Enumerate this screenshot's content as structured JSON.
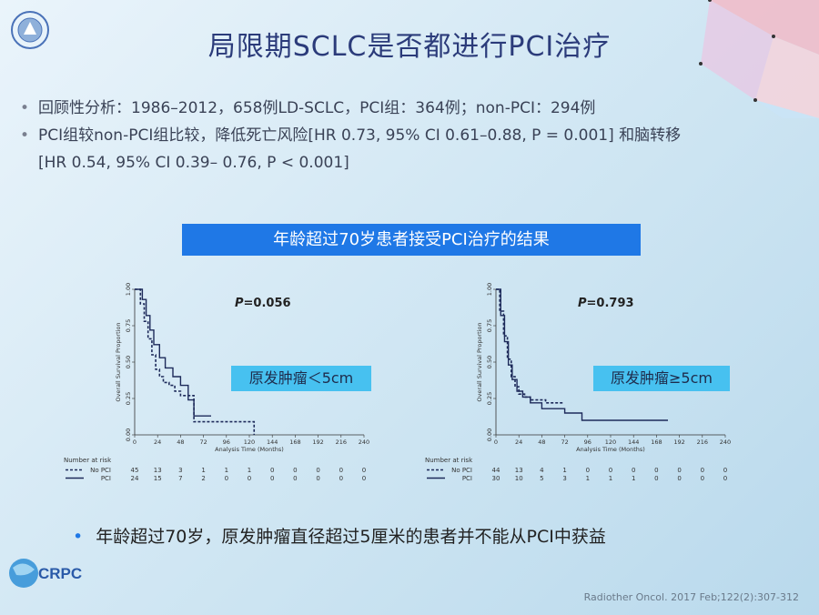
{
  "slide": {
    "title": "局限期SCLC是否都进行PCI治疗",
    "bullets": [
      {
        "text": "回顾性分析：1986–2012，658例LD-SCLC，PCI组：364例；non-PCI：294例"
      },
      {
        "line1": "PCI组较non-PCI组比较，降低死亡风险[HR 0.73, 95% CI 0.61–0.88, P = 0.001] 和脑转移",
        "line2": "[HR 0.54, 95% CI 0.39– 0.76, P < 0.001]"
      }
    ],
    "banner": "年龄超过70岁患者接受PCI治疗的结果",
    "conclusion": "年龄超过70岁，原发肿瘤直径超过5厘米的患者并不能从PCI中获益",
    "reference": "Radiother Oncol. 2017 Feb;122(2):307-312",
    "logo_text": "CRPC",
    "bullet_symbol": "•",
    "accent_color": "#1f78e6",
    "tumor_box_color": "#47c1f0"
  },
  "chart_data": [
    {
      "type": "line",
      "subtype": "kaplan-meier",
      "p_label": "P",
      "p_value": "=0.056",
      "box_label": "原发肿瘤＜5cm",
      "xlabel": "Analysis Time (Months)",
      "ylabel": "Overall Survival Proportion",
      "xlim": [
        0,
        240
      ],
      "ylim": [
        0,
        1
      ],
      "xticks": [
        0,
        24,
        48,
        72,
        96,
        120,
        144,
        168,
        192,
        216,
        240
      ],
      "yticks": [
        "0.00",
        "0.25",
        "0.50",
        "0.75",
        "1.00"
      ],
      "series": [
        {
          "name": "No PCI",
          "style": "dashed",
          "x": [
            0,
            6,
            10,
            14,
            18,
            22,
            26,
            30,
            36,
            42,
            48,
            56,
            62,
            66,
            72,
            80,
            96,
            108,
            120,
            125
          ],
          "y": [
            1.0,
            0.9,
            0.78,
            0.66,
            0.55,
            0.45,
            0.4,
            0.36,
            0.34,
            0.3,
            0.27,
            0.27,
            0.09,
            0.09,
            0.09,
            0.09,
            0.09,
            0.09,
            0.09,
            0.0
          ]
        },
        {
          "name": "PCI",
          "style": "solid",
          "x": [
            0,
            8,
            12,
            16,
            20,
            26,
            32,
            40,
            48,
            56,
            62,
            66,
            80
          ],
          "y": [
            1.0,
            0.93,
            0.82,
            0.72,
            0.62,
            0.53,
            0.46,
            0.4,
            0.34,
            0.24,
            0.13,
            0.13,
            0.13
          ]
        }
      ],
      "risk_table": {
        "header": "Number at risk",
        "rows": [
          {
            "name": "No PCI",
            "values": [
              "45",
              "13",
              "3",
              "1",
              "1",
              "1",
              "0",
              "0",
              "0",
              "0",
              "0"
            ]
          },
          {
            "name": "PCI",
            "values": [
              "24",
              "15",
              "7",
              "2",
              "0",
              "0",
              "0",
              "0",
              "0",
              "0",
              "0"
            ]
          }
        ]
      }
    },
    {
      "type": "line",
      "subtype": "kaplan-meier",
      "p_label": "P",
      "p_value": "=0.793",
      "box_label": "原发肿瘤≥5cm",
      "xlabel": "Analysis Time (Months)",
      "ylabel": "Overall Survival Proportion",
      "xlim": [
        0,
        240
      ],
      "ylim": [
        0,
        1
      ],
      "xticks": [
        0,
        24,
        48,
        72,
        96,
        120,
        144,
        168,
        192,
        216,
        240
      ],
      "yticks": [
        "0.00",
        "0.25",
        "0.50",
        "0.75",
        "1.00"
      ],
      "series": [
        {
          "name": "No PCI",
          "style": "dashed",
          "x": [
            0,
            4,
            8,
            12,
            16,
            20,
            24,
            30,
            36,
            44,
            52,
            60,
            70
          ],
          "y": [
            1.0,
            0.85,
            0.68,
            0.52,
            0.4,
            0.33,
            0.28,
            0.26,
            0.24,
            0.24,
            0.22,
            0.22,
            0.22
          ]
        },
        {
          "name": "PCI",
          "style": "solid",
          "x": [
            0,
            5,
            9,
            13,
            17,
            22,
            28,
            36,
            48,
            60,
            72,
            84,
            90,
            100,
            120,
            150,
            180
          ],
          "y": [
            1.0,
            0.82,
            0.64,
            0.48,
            0.38,
            0.3,
            0.26,
            0.22,
            0.18,
            0.18,
            0.15,
            0.15,
            0.1,
            0.1,
            0.1,
            0.1,
            0.1
          ]
        }
      ],
      "risk_table": {
        "header": "Number at risk",
        "rows": [
          {
            "name": "No PCI",
            "values": [
              "44",
              "13",
              "4",
              "1",
              "0",
              "0",
              "0",
              "0",
              "0",
              "0",
              "0"
            ]
          },
          {
            "name": "PCI",
            "values": [
              "30",
              "10",
              "5",
              "3",
              "1",
              "1",
              "1",
              "0",
              "0",
              "0",
              "0"
            ]
          }
        ]
      }
    }
  ]
}
